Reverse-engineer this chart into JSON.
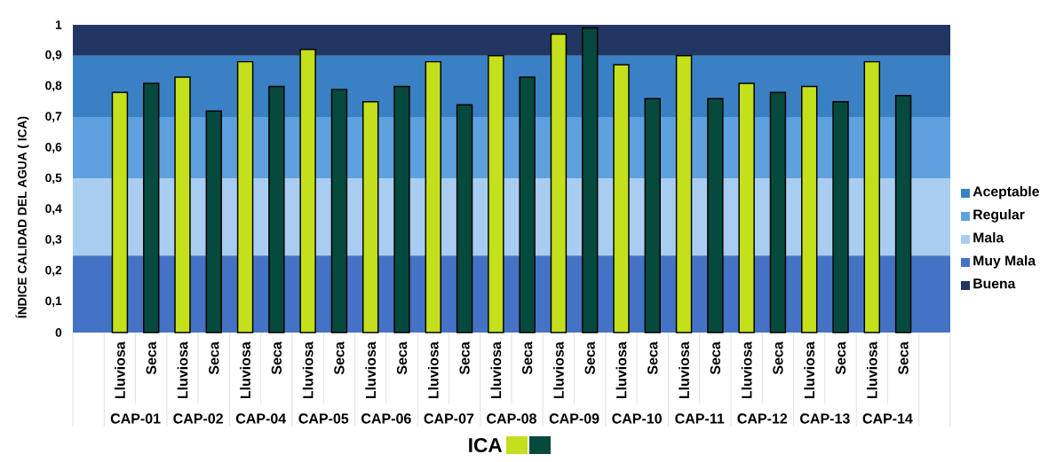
{
  "chart_data": {
    "type": "bar",
    "ylabel": "ÍNDICE CALIDAD DEL AGUA ( ICA)",
    "legend_title": "ICA",
    "categories": [
      "CAP-01",
      "CAP-02",
      "CAP-04",
      "CAP-05",
      "CAP-06",
      "CAP-07",
      "CAP-08",
      "CAP-09",
      "CAP-10",
      "CAP-11",
      "CAP-12",
      "CAP-13",
      "CAP-14"
    ],
    "series": [
      {
        "name": "Lluviosa",
        "color": "#c4e01c",
        "values": [
          0.78,
          0.83,
          0.88,
          0.92,
          0.75,
          0.88,
          0.9,
          0.97,
          0.87,
          0.9,
          0.81,
          0.8,
          0.88
        ]
      },
      {
        "name": "Seca",
        "color": "#06493d",
        "values": [
          0.81,
          0.72,
          0.8,
          0.79,
          0.8,
          0.74,
          0.83,
          0.99,
          0.76,
          0.76,
          0.78,
          0.75,
          0.77
        ]
      }
    ],
    "ylim": [
      0,
      1
    ],
    "yticks": [
      0,
      {
        "value": 0.1,
        "label": "0,1"
      },
      {
        "value": 0.2,
        "label": "0,2"
      },
      {
        "value": 0.3,
        "label": "0,3"
      },
      {
        "value": 0.4,
        "label": "0,4"
      },
      {
        "value": 0.5,
        "label": "0,5"
      },
      {
        "value": 0.6,
        "label": "0,6"
      },
      {
        "value": 0.7,
        "label": "0,7"
      },
      {
        "value": 0.8,
        "label": "0,8"
      },
      {
        "value": 0.9,
        "label": "0,9"
      },
      1
    ],
    "bands": [
      {
        "axis": "y",
        "from": 0.7,
        "to": 0.9,
        "label": "Aceptable",
        "color": "#3a80c4"
      },
      {
        "axis": "y",
        "from": 0.5,
        "to": 0.7,
        "label": "Regular",
        "color": "#5ea1de"
      },
      {
        "axis": "y",
        "from": 0.25,
        "to": 0.5,
        "label": "Mala",
        "color": "#a9cdf1"
      },
      {
        "axis": "y",
        "from": 0,
        "to": 0.25,
        "label": "Muy Mala",
        "color": "#4472c4"
      },
      {
        "axis": "y",
        "from": 0.9,
        "to": 1,
        "label": "Buena",
        "color": "#213662"
      }
    ],
    "legend": "bottom"
  }
}
